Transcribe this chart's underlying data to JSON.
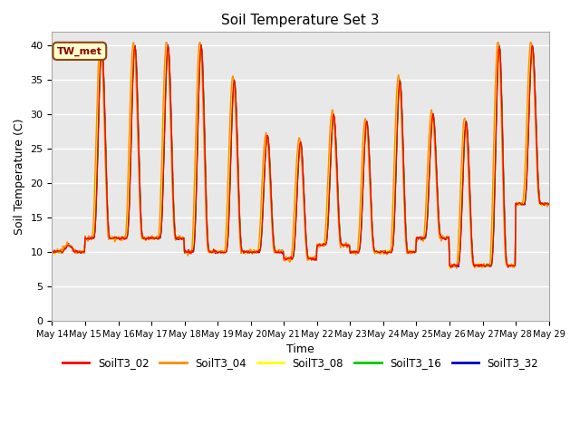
{
  "title": "Soil Temperature Set 3",
  "xlabel": "Time",
  "ylabel": "Soil Temperature (C)",
  "ylim": [
    0,
    42
  ],
  "yticks": [
    0,
    5,
    10,
    15,
    20,
    25,
    30,
    35,
    40
  ],
  "fig_bg_color": "#ffffff",
  "plot_bg_color": "#e8e8e8",
  "series_colors": {
    "SoilT3_02": "#ff0000",
    "SoilT3_04": "#ff8c00",
    "SoilT3_08": "#ffff00",
    "SoilT3_16": "#00cc00",
    "SoilT3_32": "#0000cc"
  },
  "series_order": [
    "SoilT3_32",
    "SoilT3_16",
    "SoilT3_08",
    "SoilT3_04",
    "SoilT3_02"
  ],
  "legend_order": [
    "SoilT3_02",
    "SoilT3_04",
    "SoilT3_08",
    "SoilT3_16",
    "SoilT3_32"
  ],
  "annotation_text": "TW_met",
  "n_days": 15,
  "start_day": 14,
  "day_peaks": [
    11,
    40,
    40,
    40,
    40,
    35,
    27,
    26,
    30,
    29,
    35,
    30,
    29,
    40,
    40
  ],
  "day_mins": [
    10,
    12,
    12,
    12,
    10,
    10,
    10,
    9,
    11,
    10,
    10,
    12,
    8,
    8,
    17
  ]
}
